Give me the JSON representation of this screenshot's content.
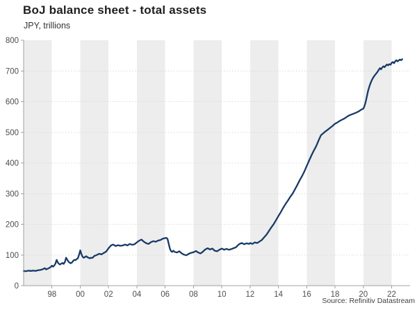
{
  "header": {
    "title": "BoJ balance sheet - total assets",
    "subtitle": "JPY, trillions"
  },
  "source": "Source: Refinitiv Datastream",
  "chart_data": {
    "type": "line",
    "title": "BoJ balance sheet - total assets",
    "subtitle": "JPY, trillions",
    "xlabel": "",
    "ylabel": "JPY, trillions",
    "xlim": [
      1996,
      2023.3
    ],
    "ylim": [
      0,
      800
    ],
    "y_ticks": [
      0,
      100,
      200,
      300,
      400,
      500,
      600,
      700,
      800
    ],
    "x_ticks": [
      1998,
      2000,
      2002,
      2004,
      2006,
      2008,
      2010,
      2012,
      2014,
      2016,
      2018,
      2020,
      2022
    ],
    "x_tick_labels": [
      "98",
      "00",
      "02",
      "04",
      "06",
      "08",
      "10",
      "12",
      "14",
      "16",
      "18",
      "20",
      "22"
    ],
    "grid": "horizontal-dashed",
    "legend": "none",
    "shaded_bands": {
      "note": "alternating 2-year vertical bands, gray starting at each leap of 4 from 1996",
      "start": 1996,
      "band_width_years": 2,
      "period_years": 4
    },
    "colors": {
      "line": "#173a67",
      "band": "#ededed",
      "grid": "#d9d9d9",
      "axis": "#a0a0a0",
      "tick_label": "#4d4d4d",
      "title": "#1f1f1f",
      "source_text": "#404040"
    },
    "series": [
      {
        "name": "BoJ total assets (JPY trillions)",
        "points": [
          [
            1996.0,
            48
          ],
          [
            1996.17,
            47
          ],
          [
            1996.33,
            49
          ],
          [
            1996.5,
            48
          ],
          [
            1996.67,
            49
          ],
          [
            1996.83,
            48
          ],
          [
            1997.0,
            50
          ],
          [
            1997.17,
            51
          ],
          [
            1997.33,
            53
          ],
          [
            1997.5,
            57
          ],
          [
            1997.58,
            53
          ],
          [
            1997.75,
            56
          ],
          [
            1997.92,
            61
          ],
          [
            1998.0,
            65
          ],
          [
            1998.08,
            62
          ],
          [
            1998.17,
            66
          ],
          [
            1998.25,
            72
          ],
          [
            1998.33,
            84
          ],
          [
            1998.42,
            75
          ],
          [
            1998.5,
            71
          ],
          [
            1998.58,
            69
          ],
          [
            1998.67,
            72
          ],
          [
            1998.75,
            74
          ],
          [
            1998.83,
            71
          ],
          [
            1998.92,
            78
          ],
          [
            1999.0,
            91
          ],
          [
            1999.08,
            85
          ],
          [
            1999.17,
            78
          ],
          [
            1999.25,
            75
          ],
          [
            1999.33,
            73
          ],
          [
            1999.42,
            76
          ],
          [
            1999.5,
            81
          ],
          [
            1999.58,
            84
          ],
          [
            1999.67,
            83
          ],
          [
            1999.75,
            87
          ],
          [
            1999.83,
            89
          ],
          [
            1999.92,
            101
          ],
          [
            2000.0,
            115
          ],
          [
            2000.08,
            103
          ],
          [
            2000.17,
            94
          ],
          [
            2000.25,
            91
          ],
          [
            2000.33,
            93
          ],
          [
            2000.42,
            96
          ],
          [
            2000.5,
            93
          ],
          [
            2000.58,
            91
          ],
          [
            2000.67,
            89
          ],
          [
            2000.75,
            91
          ],
          [
            2000.83,
            90
          ],
          [
            2000.92,
            93
          ],
          [
            2001.0,
            97
          ],
          [
            2001.17,
            100
          ],
          [
            2001.33,
            104
          ],
          [
            2001.5,
            102
          ],
          [
            2001.67,
            107
          ],
          [
            2001.83,
            111
          ],
          [
            2002.0,
            122
          ],
          [
            2002.17,
            131
          ],
          [
            2002.33,
            134
          ],
          [
            2002.5,
            129
          ],
          [
            2002.67,
            132
          ],
          [
            2002.83,
            130
          ],
          [
            2003.0,
            131
          ],
          [
            2003.17,
            134
          ],
          [
            2003.33,
            131
          ],
          [
            2003.5,
            136
          ],
          [
            2003.67,
            133
          ],
          [
            2003.83,
            135
          ],
          [
            2004.0,
            141
          ],
          [
            2004.17,
            147
          ],
          [
            2004.33,
            150
          ],
          [
            2004.5,
            143
          ],
          [
            2004.67,
            138
          ],
          [
            2004.83,
            136
          ],
          [
            2005.0,
            142
          ],
          [
            2005.17,
            145
          ],
          [
            2005.33,
            143
          ],
          [
            2005.5,
            147
          ],
          [
            2005.67,
            149
          ],
          [
            2005.83,
            153
          ],
          [
            2006.0,
            155
          ],
          [
            2006.08,
            156
          ],
          [
            2006.17,
            152
          ],
          [
            2006.25,
            136
          ],
          [
            2006.33,
            121
          ],
          [
            2006.42,
            112
          ],
          [
            2006.5,
            110
          ],
          [
            2006.58,
            114
          ],
          [
            2006.67,
            110
          ],
          [
            2006.83,
            108
          ],
          [
            2007.0,
            112
          ],
          [
            2007.17,
            105
          ],
          [
            2007.33,
            101
          ],
          [
            2007.5,
            99
          ],
          [
            2007.67,
            104
          ],
          [
            2007.83,
            107
          ],
          [
            2008.0,
            109
          ],
          [
            2008.17,
            113
          ],
          [
            2008.33,
            108
          ],
          [
            2008.5,
            105
          ],
          [
            2008.67,
            111
          ],
          [
            2008.83,
            118
          ],
          [
            2009.0,
            122
          ],
          [
            2009.17,
            118
          ],
          [
            2009.33,
            121
          ],
          [
            2009.5,
            114
          ],
          [
            2009.67,
            112
          ],
          [
            2009.83,
            117
          ],
          [
            2010.0,
            121
          ],
          [
            2010.17,
            117
          ],
          [
            2010.33,
            120
          ],
          [
            2010.5,
            117
          ],
          [
            2010.67,
            119
          ],
          [
            2010.83,
            122
          ],
          [
            2011.0,
            125
          ],
          [
            2011.08,
            129
          ],
          [
            2011.25,
            136
          ],
          [
            2011.42,
            139
          ],
          [
            2011.58,
            135
          ],
          [
            2011.75,
            138
          ],
          [
            2011.92,
            136
          ],
          [
            2012.0,
            139
          ],
          [
            2012.17,
            136
          ],
          [
            2012.33,
            141
          ],
          [
            2012.5,
            139
          ],
          [
            2012.67,
            144
          ],
          [
            2012.83,
            149
          ],
          [
            2013.0,
            158
          ],
          [
            2013.17,
            167
          ],
          [
            2013.33,
            178
          ],
          [
            2013.5,
            190
          ],
          [
            2013.67,
            201
          ],
          [
            2013.83,
            213
          ],
          [
            2014.0,
            227
          ],
          [
            2014.17,
            240
          ],
          [
            2014.33,
            253
          ],
          [
            2014.5,
            266
          ],
          [
            2014.67,
            277
          ],
          [
            2014.83,
            289
          ],
          [
            2015.0,
            300
          ],
          [
            2015.17,
            314
          ],
          [
            2015.33,
            328
          ],
          [
            2015.5,
            343
          ],
          [
            2015.67,
            357
          ],
          [
            2015.83,
            372
          ],
          [
            2016.0,
            390
          ],
          [
            2016.17,
            408
          ],
          [
            2016.33,
            424
          ],
          [
            2016.5,
            440
          ],
          [
            2016.67,
            455
          ],
          [
            2016.83,
            472
          ],
          [
            2017.0,
            490
          ],
          [
            2017.17,
            497
          ],
          [
            2017.33,
            503
          ],
          [
            2017.5,
            509
          ],
          [
            2017.67,
            515
          ],
          [
            2017.83,
            521
          ],
          [
            2018.0,
            528
          ],
          [
            2018.17,
            532
          ],
          [
            2018.33,
            537
          ],
          [
            2018.5,
            541
          ],
          [
            2018.67,
            545
          ],
          [
            2018.83,
            550
          ],
          [
            2019.0,
            555
          ],
          [
            2019.17,
            558
          ],
          [
            2019.33,
            561
          ],
          [
            2019.5,
            564
          ],
          [
            2019.67,
            568
          ],
          [
            2019.83,
            573
          ],
          [
            2020.0,
            577
          ],
          [
            2020.08,
            585
          ],
          [
            2020.17,
            600
          ],
          [
            2020.25,
            617
          ],
          [
            2020.33,
            634
          ],
          [
            2020.42,
            648
          ],
          [
            2020.5,
            659
          ],
          [
            2020.58,
            668
          ],
          [
            2020.67,
            676
          ],
          [
            2020.75,
            682
          ],
          [
            2020.83,
            687
          ],
          [
            2020.92,
            692
          ],
          [
            2021.0,
            697
          ],
          [
            2021.08,
            703
          ],
          [
            2021.17,
            709
          ],
          [
            2021.25,
            705
          ],
          [
            2021.33,
            711
          ],
          [
            2021.42,
            715
          ],
          [
            2021.5,
            712
          ],
          [
            2021.58,
            717
          ],
          [
            2021.67,
            721
          ],
          [
            2021.75,
            718
          ],
          [
            2021.83,
            722
          ],
          [
            2021.92,
            720
          ],
          [
            2022.0,
            726
          ],
          [
            2022.08,
            729
          ],
          [
            2022.17,
            725
          ],
          [
            2022.25,
            731
          ],
          [
            2022.33,
            735
          ],
          [
            2022.42,
            731
          ],
          [
            2022.5,
            734
          ],
          [
            2022.58,
            737
          ],
          [
            2022.67,
            735
          ],
          [
            2022.75,
            738
          ]
        ]
      }
    ]
  }
}
